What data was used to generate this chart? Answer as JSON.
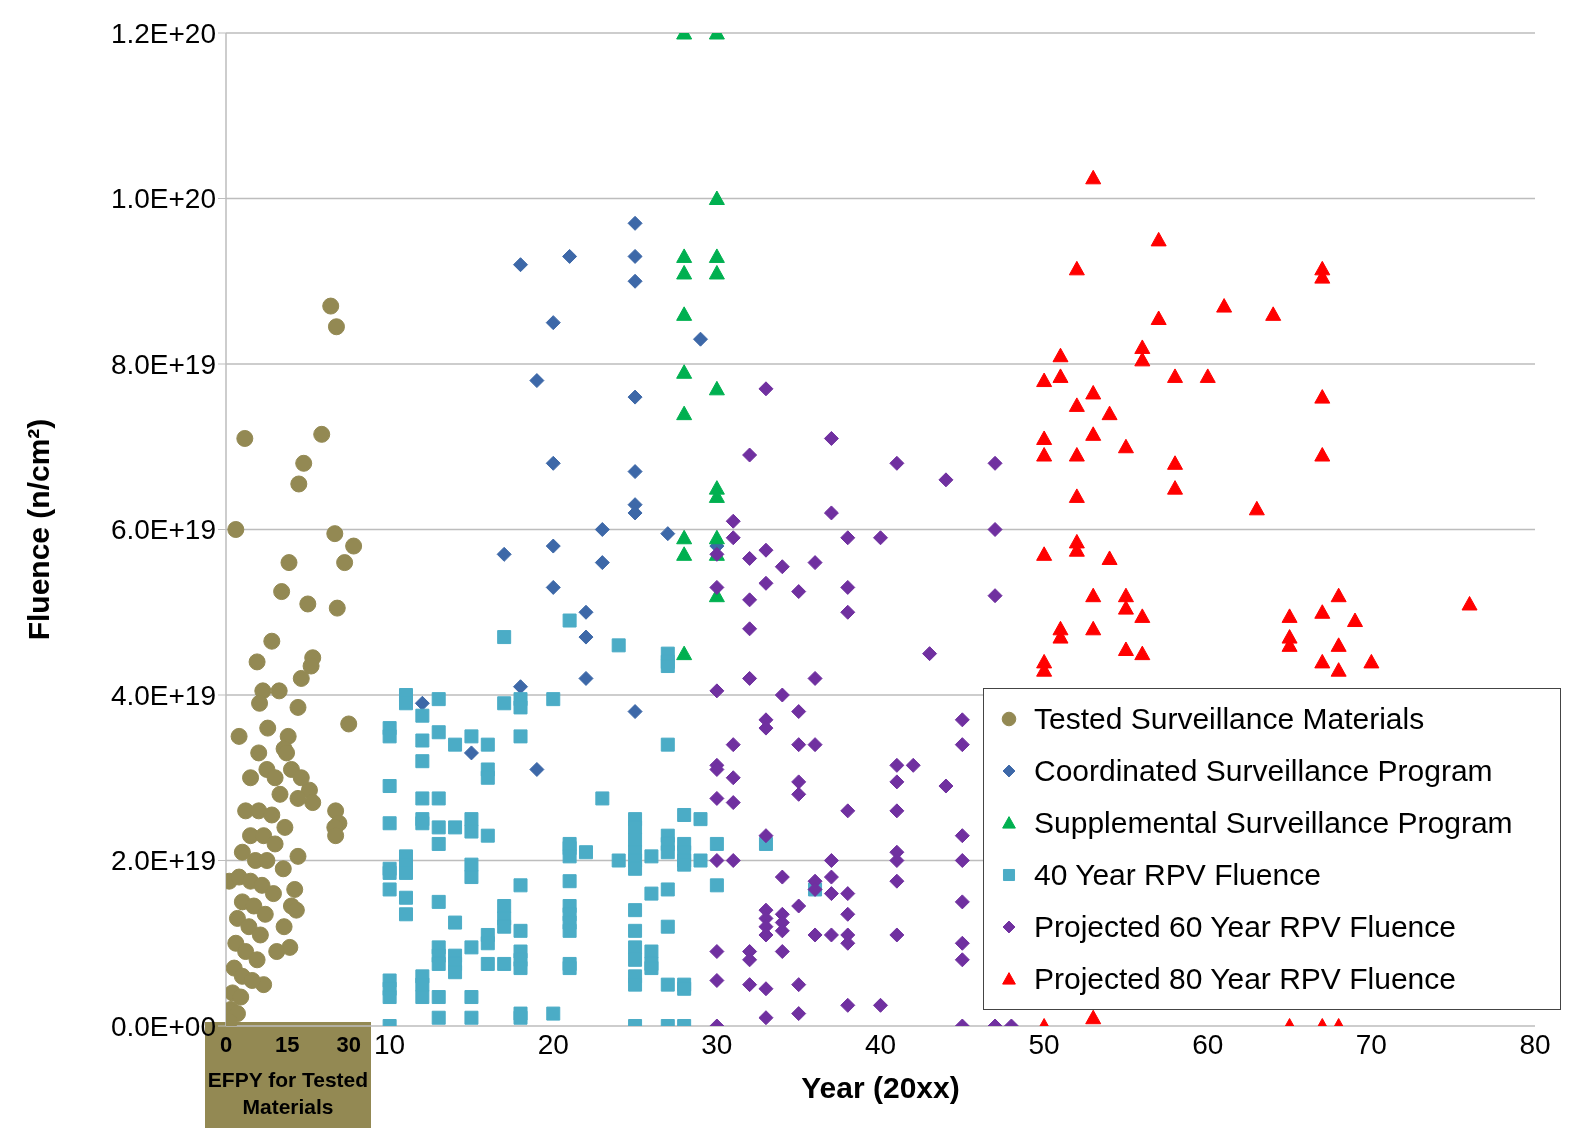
{
  "chart_data": {
    "type": "scatter",
    "xlabel": "Year (20xx)",
    "ylabel": "Fluence (n/cm²)",
    "x2label": "EFPY for Tested Materials",
    "xlim": [
      0,
      80
    ],
    "xticks": [
      10,
      20,
      30,
      40,
      50,
      60,
      70,
      80
    ],
    "x2lim": [
      0,
      320
    ],
    "x2ticks": [
      0,
      15,
      30
    ],
    "ylim": [
      0,
      1.2e+20
    ],
    "yticks": [
      {
        "value": 0,
        "label": "0.0E+00"
      },
      {
        "value": 2e+19,
        "label": "2.0E+19"
      },
      {
        "value": 4e+19,
        "label": "4.0E+19"
      },
      {
        "value": 6e+19,
        "label": "6.0E+19"
      },
      {
        "value": 8e+19,
        "label": "8.0E+19"
      },
      {
        "value": 1e+20,
        "label": "1.0E+20"
      },
      {
        "value": 1.2e+20,
        "label": "1.2E+20"
      }
    ],
    "grid": "y",
    "legend": "bottom right",
    "series": [
      {
        "name": "Tested Surveillance Materials",
        "color": "#938953",
        "marker": "circle",
        "axis": "x2",
        "x": [
          25.6,
          27,
          4.6,
          23.4,
          19,
          17.8,
          2.4,
          26.6,
          31.2,
          29,
          15.4,
          13.6,
          20,
          27.2,
          11.2,
          7.6,
          21.2,
          20.8,
          18.4,
          9,
          13,
          8.2,
          17.6,
          10.2,
          30,
          3.2,
          15.2,
          14.2,
          20.4,
          21.2,
          26.8,
          27.6,
          26.6,
          26.8,
          17.6,
          16.8,
          16,
          17.2,
          14.2,
          15.6,
          12.4,
          9.2,
          0.8,
          8,
          10,
          12,
          6,
          13.2,
          4.8,
          8,
          11.2,
          14.4,
          6,
          9.2,
          12,
          4,
          7.2,
          10,
          14,
          3.2,
          6,
          8.8,
          11.6,
          4,
          6.8,
          9.6,
          2.8,
          5.6,
          8.4,
          2.4,
          4.8,
          7.6,
          2,
          4,
          6.4,
          1.6,
          3.6,
          1.2,
          2.8,
          0.8,
          17.6,
          16,
          14.8,
          18.4
        ],
        "values": [
          8.7e+19,
          8.45e+19,
          7.1e+19,
          7.15e+19,
          6.8e+19,
          6.55e+19,
          6e+19,
          5.95e+19,
          5.8e+19,
          5.6e+19,
          5.6e+19,
          5.25e+19,
          5.1e+19,
          5.05e+19,
          4.65e+19,
          4.4e+19,
          4.45e+19,
          4.35e+19,
          4.2e+19,
          4.05e+19,
          4.05e+19,
          3.9e+19,
          3.85e+19,
          3.6e+19,
          3.65e+19,
          3.5e+19,
          3.5e+19,
          3.35e+19,
          2.85e+19,
          2.7e+19,
          2.6e+19,
          2.45e+19,
          2.4e+19,
          2.3e+19,
          2.05e+19,
          1.65e+19,
          1.45e+19,
          1.4e+19,
          1.2e+19,
          9.5e+18,
          9e+18,
          5e+18,
          1.75e+19,
          3.3e+19,
          3.1e+19,
          3e+19,
          3e+19,
          2.8e+19,
          2.6e+19,
          2.6e+19,
          2.55e+19,
          2.4e+19,
          2.3e+19,
          2.3e+19,
          2.2e+19,
          2.1e+19,
          2e+19,
          2e+19,
          1.9e+19,
          1.8e+19,
          1.75e+19,
          1.7e+19,
          1.6e+19,
          1.5e+19,
          1.45e+19,
          1.35e+19,
          1.3e+19,
          1.2e+19,
          1.1e+19,
          1e+19,
          9e+18,
          8e+18,
          7e+18,
          6e+18,
          5.5e+18,
          4e+18,
          3.5e+18,
          2e+18,
          1.5e+18,
          5e+17,
          2.75e+19,
          3.1e+19,
          3.3e+19,
          3e+19
        ]
      },
      {
        "name": "Coordinated Surveillance Program",
        "color": "#3d68a8",
        "marker": "diamond",
        "x": [
          17,
          18,
          18,
          19,
          19,
          20,
          20,
          20,
          20,
          21,
          22,
          22,
          22,
          23,
          23,
          25,
          25,
          25,
          25,
          25,
          25,
          25,
          25,
          27,
          29,
          30,
          12,
          15
        ],
        "values": [
          5.7e+19,
          9.2e+19,
          4.1e+19,
          7.8e+19,
          3.1e+19,
          8.5e+19,
          6.8e+19,
          5.8e+19,
          5.3e+19,
          9.3e+19,
          5e+19,
          4.7e+19,
          4.2e+19,
          6e+19,
          5.6e+19,
          9.7e+19,
          9.3e+19,
          9e+19,
          7.6e+19,
          6.7e+19,
          6.3e+19,
          6.2e+19,
          3.8e+19,
          5.95e+19,
          8.3e+19,
          5.8e+19,
          3.9e+19,
          3.3e+19
        ]
      },
      {
        "name": "Supplemental Surveillance Program",
        "color": "#00b050",
        "marker": "triangle",
        "x": [
          28,
          28,
          28,
          28,
          28,
          28,
          28,
          28,
          28,
          30,
          30,
          30,
          30,
          30,
          30,
          30,
          30,
          30,
          30
        ],
        "values": [
          1.2e+20,
          9.3e+19,
          9.1e+19,
          8.6e+19,
          7.9e+19,
          7.4e+19,
          5.9e+19,
          5.7e+19,
          4.5e+19,
          1.2e+20,
          1e+20,
          9.3e+19,
          9.1e+19,
          7.7e+19,
          6.5e+19,
          6.4e+19,
          5.9e+19,
          5.7e+19,
          5.2e+19
        ]
      },
      {
        "name": "40 Year RPV Fluence",
        "color": "#4bacc6",
        "marker": "square",
        "x": [
          10,
          10,
          10,
          10,
          10,
          10,
          10,
          10,
          10,
          10,
          10,
          11,
          11,
          11,
          11,
          11,
          11,
          11,
          12,
          12,
          12,
          12,
          12,
          12,
          12,
          12,
          12,
          13,
          13,
          13,
          13,
          13,
          13,
          13,
          13,
          13,
          13,
          13,
          14,
          14,
          14,
          14,
          14,
          14,
          15,
          15,
          15,
          15,
          15,
          15,
          15,
          15,
          16,
          16,
          16,
          16,
          16,
          16,
          16,
          17,
          17,
          17,
          17,
          17,
          17,
          18,
          18,
          18,
          18,
          18,
          18,
          18,
          18,
          18,
          18,
          20,
          20,
          21,
          21,
          21,
          21,
          21,
          21,
          21,
          21,
          21,
          21,
          21,
          22,
          23,
          24,
          24,
          25,
          25,
          25,
          25,
          25,
          25,
          25,
          25,
          25,
          25,
          25,
          25,
          25,
          26,
          26,
          26,
          26,
          26,
          27,
          27,
          27,
          27,
          27,
          27,
          27,
          27,
          27,
          27,
          27,
          28,
          28,
          28,
          28,
          28,
          28,
          28,
          28,
          29,
          29,
          30,
          30,
          33,
          36
        ],
        "values": [
          3.6e+19,
          3.5e+19,
          2.9e+19,
          2.45e+19,
          1.9e+19,
          1.85e+19,
          1.65e+19,
          5.5e+18,
          4.5e+18,
          3.5e+18,
          0,
          4e+19,
          3.9e+19,
          2.05e+19,
          1.95e+19,
          1.85e+19,
          1.55e+19,
          1.35e+19,
          3.75e+19,
          3.45e+19,
          3.2e+19,
          2.75e+19,
          2.5e+19,
          2.45e+19,
          6e+18,
          5e+18,
          3.5e+18,
          3.95e+19,
          3.55e+19,
          2.75e+19,
          2.4e+19,
          2.2e+19,
          1.5e+19,
          9.5e+18,
          8.5e+18,
          7.5e+18,
          3.5e+18,
          1e+18,
          3.4e+19,
          2.4e+19,
          1.25e+19,
          8.5e+18,
          7.5e+18,
          6.5e+18,
          3.5e+19,
          2.5e+19,
          2.35e+19,
          1.95e+19,
          1.8e+19,
          9.5e+18,
          3.5e+18,
          1e+18,
          3.4e+19,
          3.1e+19,
          3e+19,
          2.3e+19,
          1.1e+19,
          1e+19,
          7.5e+18,
          4.7e+19,
          3.9e+19,
          1.45e+19,
          1.3e+19,
          1.2e+19,
          7.5e+18,
          3.95e+19,
          3.85e+19,
          3.5e+19,
          1.7e+19,
          1.15e+19,
          9e+18,
          8e+18,
          7e+18,
          1.5e+18,
          1e+18,
          3.95e+19,
          1.5e+18,
          4.9e+19,
          2.2e+19,
          2.15e+19,
          2.05e+19,
          1.75e+19,
          1.45e+19,
          1.35e+19,
          1.25e+19,
          1.15e+19,
          7.5e+18,
          7e+18,
          2.1e+19,
          2.75e+19,
          4.6e+19,
          2e+19,
          2.5e+19,
          2.4e+19,
          2.25e+19,
          2.1e+19,
          2e+19,
          1.9e+19,
          1.4e+19,
          1.15e+19,
          9.5e+18,
          8e+18,
          6e+18,
          5e+18,
          0,
          2.05e+19,
          1.6e+19,
          9e+18,
          7.5e+18,
          7e+18,
          4.5e+19,
          4.4e+19,
          4.35e+19,
          3.4e+19,
          2.3e+19,
          2.2e+19,
          2.1e+19,
          1.65e+19,
          1.2e+19,
          5e+18,
          0,
          2.55e+19,
          2.2e+19,
          2.1e+19,
          2e+19,
          1.95e+19,
          5e+18,
          4.5e+18,
          0,
          2.5e+19,
          2e+19,
          2.2e+19,
          1.7e+19,
          2.2e+19,
          1.65e+19
        ]
      },
      {
        "name": "Projected 60 Year RPV Fluence",
        "color": "#7030a0",
        "marker": "diamond",
        "x": [
          33,
          37,
          32,
          41,
          47,
          44,
          37,
          31,
          47,
          31,
          38,
          40,
          30,
          32,
          33,
          34,
          36,
          33,
          35,
          38,
          30,
          32,
          47,
          38,
          32,
          43,
          36,
          32,
          30,
          34,
          35,
          45,
          33,
          33,
          31,
          35,
          36,
          45,
          30,
          30,
          41,
          42,
          31,
          41,
          44,
          35,
          35,
          30,
          31,
          38,
          41,
          33,
          45,
          30,
          31,
          37,
          41,
          41,
          45,
          34,
          37,
          41,
          36,
          36,
          37,
          38,
          35,
          45,
          33,
          33,
          33,
          33,
          34,
          34,
          34,
          38,
          36,
          37,
          38,
          38,
          41,
          45,
          45,
          30,
          32,
          32,
          34,
          30,
          32,
          33,
          35,
          33,
          35,
          38,
          40,
          30,
          45,
          47,
          48
        ],
        "values": [
          7.7e+19,
          7.1e+19,
          6.9e+19,
          6.8e+19,
          6.8e+19,
          6.6e+19,
          6.2e+19,
          6.1e+19,
          6e+19,
          5.9e+19,
          5.9e+19,
          5.9e+19,
          5.7e+19,
          5.65e+19,
          5.75e+19,
          5.55e+19,
          5.6e+19,
          5.35e+19,
          5.25e+19,
          5.3e+19,
          5.3e+19,
          5.15e+19,
          5.2e+19,
          5e+19,
          4.8e+19,
          4.5e+19,
          4.2e+19,
          4.2e+19,
          4.05e+19,
          4e+19,
          3.8e+19,
          3.7e+19,
          3.7e+19,
          3.6e+19,
          3.4e+19,
          3.4e+19,
          3.4e+19,
          3.4e+19,
          3.15e+19,
          3.1e+19,
          3.15e+19,
          3.15e+19,
          3e+19,
          2.95e+19,
          2.9e+19,
          2.95e+19,
          2.8e+19,
          2.75e+19,
          2.7e+19,
          2.6e+19,
          2.6e+19,
          2.3e+19,
          2.3e+19,
          2e+19,
          2e+19,
          2e+19,
          2.1e+19,
          2e+19,
          2e+19,
          1.8e+19,
          1.8e+19,
          1.75e+19,
          1.75e+19,
          1.65e+19,
          1.6e+19,
          1.6e+19,
          1.45e+19,
          1.5e+19,
          1.4e+19,
          1.3e+19,
          1.2e+19,
          1.1e+19,
          1.35e+19,
          1.25e+19,
          1.15e+19,
          1.35e+19,
          1.1e+19,
          1.1e+19,
          1.1e+19,
          1e+19,
          1.1e+19,
          1e+19,
          8e+18,
          9e+18,
          9e+18,
          8e+18,
          9e+18,
          5.5e+18,
          5e+18,
          4.5e+18,
          5e+18,
          1e+18,
          1.5e+18,
          2.5e+18,
          2.5e+18,
          0,
          0,
          0,
          0
        ]
      },
      {
        "name": "Projected 80 Year RPV Fluence",
        "color": "#ff0000",
        "marker": "triangle",
        "x": [
          53,
          57,
          52,
          67,
          67,
          61,
          64,
          57,
          51,
          56,
          56,
          50,
          51,
          53,
          58,
          60,
          67,
          52,
          54,
          53,
          50,
          55,
          50,
          52,
          67,
          58,
          58,
          52,
          63,
          52,
          52,
          50,
          54,
          53,
          55,
          68,
          55,
          56,
          65,
          67,
          69,
          76,
          51,
          51,
          53,
          55,
          56,
          65,
          65,
          68,
          50,
          50,
          67,
          68,
          70,
          50,
          65,
          67,
          68,
          53
        ],
        "values": [
          1.025e+20,
          9.5e+19,
          9.15e+19,
          9.15e+19,
          9.05e+19,
          8.7e+19,
          8.6e+19,
          8.55e+19,
          8.1e+19,
          8.2e+19,
          8.05e+19,
          7.8e+19,
          7.85e+19,
          7.65e+19,
          7.85e+19,
          7.85e+19,
          7.6e+19,
          7.5e+19,
          7.4e+19,
          7.15e+19,
          7.1e+19,
          7e+19,
          6.9e+19,
          6.9e+19,
          6.9e+19,
          6.8e+19,
          6.5e+19,
          6.4e+19,
          6.25e+19,
          5.85e+19,
          5.75e+19,
          5.7e+19,
          5.65e+19,
          5.2e+19,
          5.2e+19,
          5.2e+19,
          5.05e+19,
          4.95e+19,
          4.95e+19,
          5e+19,
          4.9e+19,
          5.1e+19,
          4.8e+19,
          4.7e+19,
          4.8e+19,
          4.55e+19,
          4.5e+19,
          4.7e+19,
          4.6e+19,
          4.6e+19,
          4.4e+19,
          4.3e+19,
          4.4e+19,
          4.3e+19,
          4.4e+19,
          0,
          0,
          0,
          0,
          1e+18
        ]
      }
    ]
  }
}
